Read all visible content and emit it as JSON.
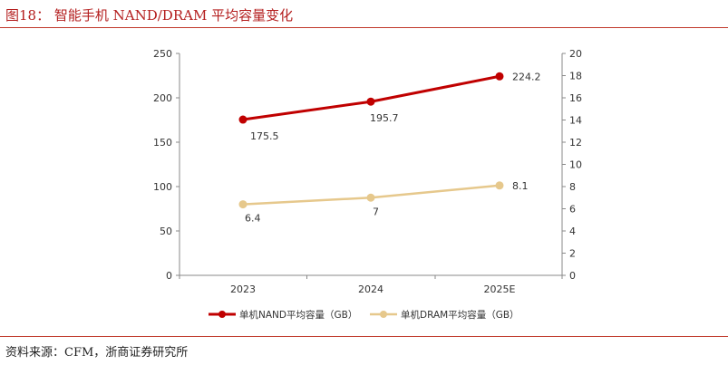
{
  "header": {
    "title": "图18：  智能手机 NAND/DRAM 平均容量变化"
  },
  "footer": {
    "source": "资料来源：CFM，浙商证券研究所"
  },
  "colors": {
    "accent": "#c0392b",
    "nand": "#c00000",
    "dram": "#e6c88c",
    "axis": "#888888"
  },
  "chart_data": {
    "type": "line",
    "categories": [
      "2023",
      "2024",
      "2025E"
    ],
    "series": [
      {
        "name": "单机NAND平均容量（GB）",
        "axis": "left",
        "values": [
          175.5,
          195.7,
          224.2
        ],
        "labels": [
          "175.5",
          "195.7",
          "224.2"
        ]
      },
      {
        "name": "单机DRAM平均容量（GB）",
        "axis": "right",
        "values": [
          6.4,
          7,
          8.1
        ],
        "labels": [
          "6.4",
          "7",
          "8.1"
        ]
      }
    ],
    "y_left": {
      "min": 0,
      "max": 250,
      "ticks": [
        "0",
        "50",
        "100",
        "150",
        "200",
        "250"
      ]
    },
    "y_right": {
      "min": 0,
      "max": 20,
      "ticks": [
        "0",
        "2",
        "4",
        "6",
        "8",
        "10",
        "12",
        "14",
        "16",
        "18",
        "20"
      ]
    },
    "grid": false,
    "legend": "bottom"
  }
}
